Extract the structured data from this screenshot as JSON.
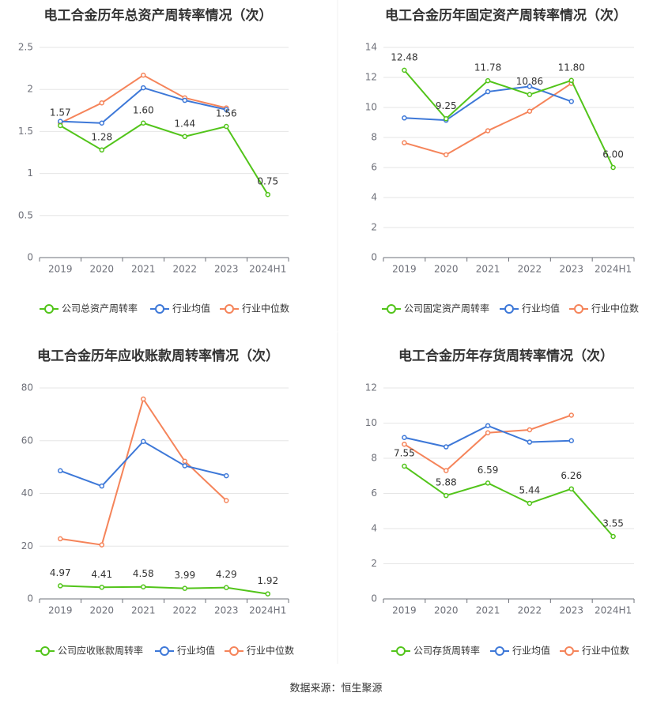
{
  "source_text": "数据来源：恒生聚源",
  "colors": {
    "company": "#52c41a",
    "industry_avg": "#3d78d8",
    "industry_median": "#f5845a"
  },
  "chart_data": [
    {
      "type": "line",
      "title": "电工合金历年总资产周转率情况（次）",
      "categories": [
        "2019",
        "2020",
        "2021",
        "2022",
        "2023",
        "2024H1"
      ],
      "ylim": [
        0,
        2.5
      ],
      "yticks": [
        "0",
        "0.5",
        "1",
        "1.5",
        "2",
        "2.5"
      ],
      "legend": "bottom",
      "series": [
        {
          "name": "公司总资产周转率",
          "values": [
            1.57,
            1.28,
            1.6,
            1.44,
            1.56,
            0.75
          ],
          "labels": [
            "1.57",
            "1.28",
            "1.60",
            "1.44",
            "1.56",
            "0.75"
          ]
        },
        {
          "name": "行业均值",
          "values": [
            1.62,
            1.6,
            2.02,
            1.87,
            1.76,
            null
          ]
        },
        {
          "name": "行业中位数",
          "values": [
            1.6,
            1.84,
            2.17,
            1.9,
            1.78,
            null
          ]
        }
      ]
    },
    {
      "type": "line",
      "title": "电工合金历年固定资产周转率情况（次）",
      "categories": [
        "2019",
        "2020",
        "2021",
        "2022",
        "2023",
        "2024H1"
      ],
      "ylim": [
        0,
        14
      ],
      "yticks": [
        "0",
        "2",
        "4",
        "6",
        "8",
        "10",
        "12",
        "14"
      ],
      "legend": "bottom",
      "series": [
        {
          "name": "公司固定资产周转率",
          "values": [
            12.48,
            9.25,
            11.78,
            10.86,
            11.8,
            6.0
          ],
          "labels": [
            "12.48",
            "9.25",
            "11.78",
            "10.86",
            "11.80",
            "6.00"
          ]
        },
        {
          "name": "行业均值",
          "values": [
            9.3,
            9.15,
            11.05,
            11.4,
            10.4,
            null
          ]
        },
        {
          "name": "行业中位数",
          "values": [
            7.65,
            6.85,
            8.45,
            9.75,
            11.6,
            null
          ]
        }
      ]
    },
    {
      "type": "line",
      "title": "电工合金历年应收账款周转率情况（次）",
      "categories": [
        "2019",
        "2020",
        "2021",
        "2022",
        "2023",
        "2024H1"
      ],
      "ylim": [
        0,
        80
      ],
      "yticks": [
        "0",
        "20",
        "40",
        "60",
        "80"
      ],
      "legend": "bottom",
      "series": [
        {
          "name": "公司应收账款周转率",
          "values": [
            4.97,
            4.41,
            4.58,
            3.99,
            4.29,
            1.92
          ],
          "labels": [
            "4.97",
            "4.41",
            "4.58",
            "3.99",
            "4.29",
            "1.92"
          ]
        },
        {
          "name": "行业均值",
          "values": [
            48.6,
            42.8,
            59.7,
            50.5,
            46.7,
            null
          ]
        },
        {
          "name": "行业中位数",
          "values": [
            22.8,
            20.5,
            75.8,
            52.2,
            37.3,
            null
          ]
        }
      ]
    },
    {
      "type": "line",
      "title": "电工合金历年存货周转率情况（次）",
      "categories": [
        "2019",
        "2020",
        "2021",
        "2022",
        "2023",
        "2024H1"
      ],
      "ylim": [
        0,
        12
      ],
      "yticks": [
        "0",
        "2",
        "4",
        "6",
        "8",
        "10",
        "12"
      ],
      "legend": "bottom",
      "series": [
        {
          "name": "公司存货周转率",
          "values": [
            7.55,
            5.88,
            6.59,
            5.44,
            6.26,
            3.55
          ],
          "labels": [
            "7.55",
            "5.88",
            "6.59",
            "5.44",
            "6.26",
            "3.55"
          ]
        },
        {
          "name": "行业均值",
          "values": [
            9.18,
            8.65,
            9.85,
            8.92,
            9.0,
            null
          ]
        },
        {
          "name": "行业中位数",
          "values": [
            8.8,
            7.3,
            9.45,
            9.62,
            10.45,
            null
          ]
        }
      ]
    }
  ]
}
